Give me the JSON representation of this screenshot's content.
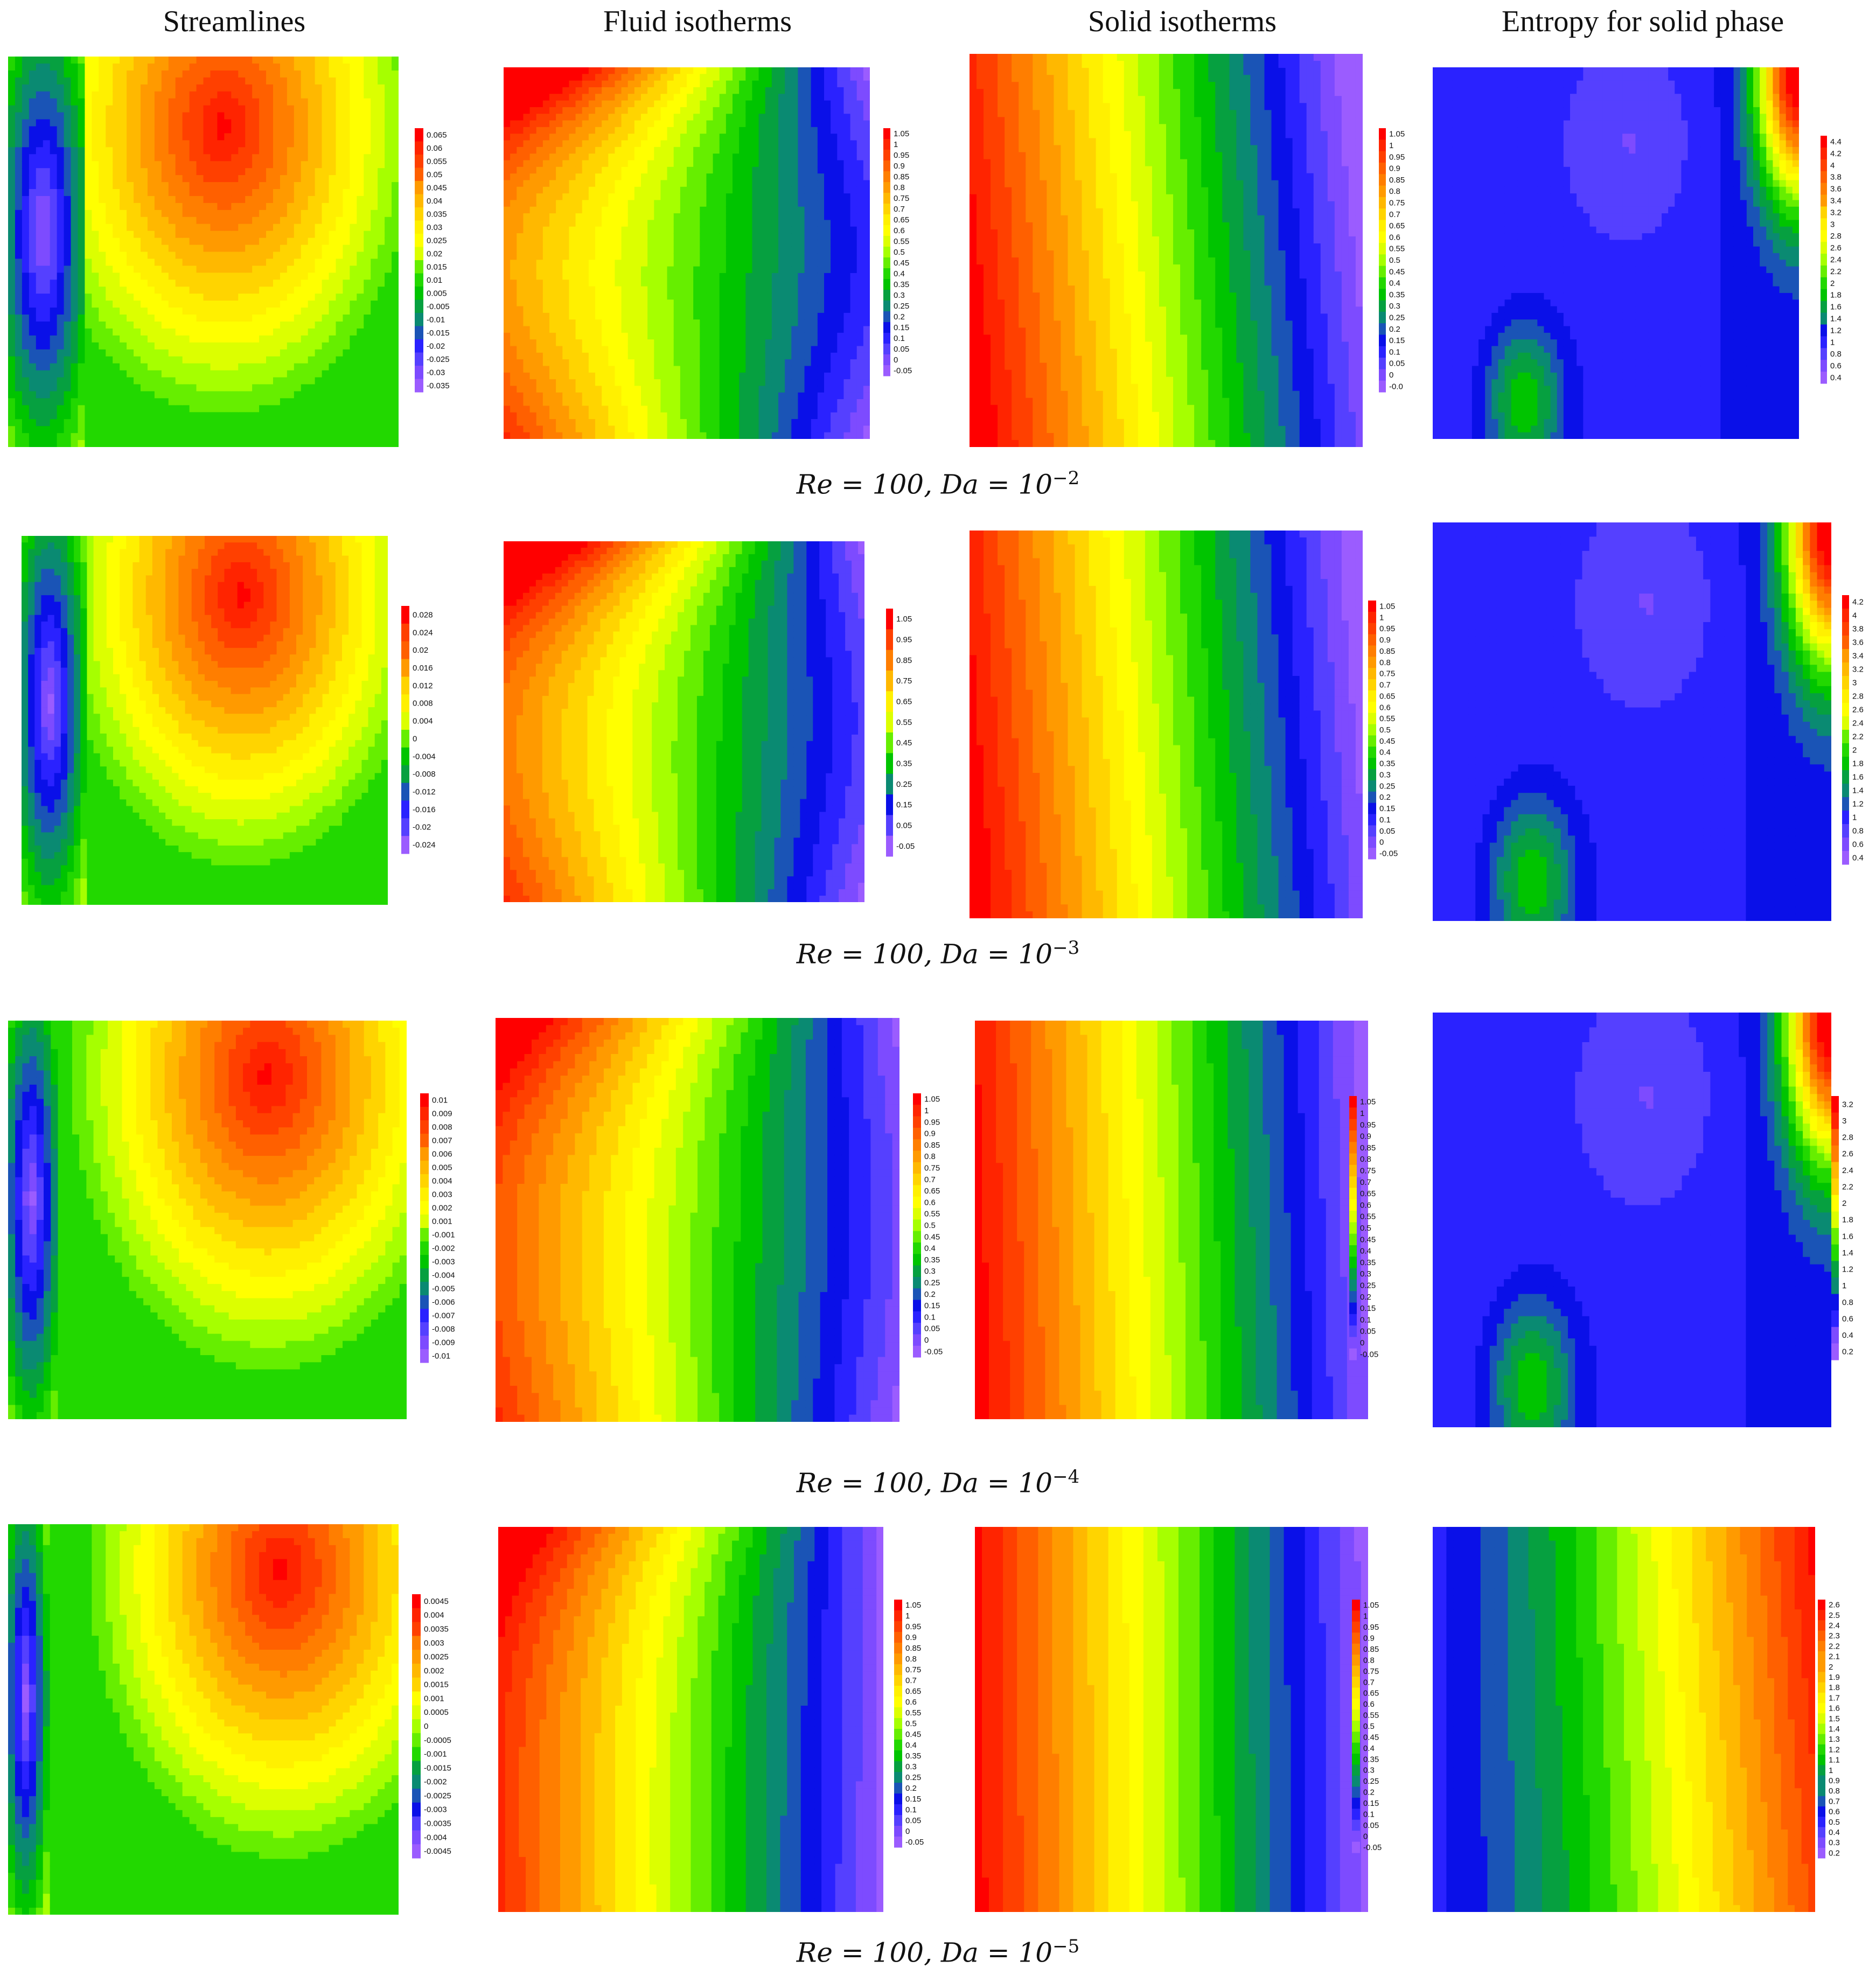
{
  "headers": [
    "Streamlines",
    "Fluid isotherms",
    "Solid isotherms",
    "Entropy for solid phase"
  ],
  "rows": [
    {
      "caption": {
        "re": "100",
        "da_exp": "−2"
      },
      "legends": [
        {
          "ticks": [
            "0.065",
            "0.06",
            "0.055",
            "0.05",
            "0.045",
            "0.04",
            "0.035",
            "0.03",
            "0.025",
            "0.02",
            "0.015",
            "0.01",
            "0.005",
            "-0.005",
            "-0.01",
            "-0.015",
            "-0.02",
            "-0.025",
            "-0.03",
            "-0.035"
          ]
        },
        {
          "ticks": [
            "1.05",
            "1",
            "0.95",
            "0.9",
            "0.85",
            "0.8",
            "0.75",
            "0.7",
            "0.65",
            "0.6",
            "0.55",
            "0.5",
            "0.45",
            "0.4",
            "0.35",
            "0.3",
            "0.25",
            "0.2",
            "0.15",
            "0.1",
            "0.05",
            "0",
            "-0.05"
          ]
        },
        {
          "ticks": [
            "1.05",
            "1",
            "0.95",
            "0.9",
            "0.85",
            "0.8",
            "0.75",
            "0.7",
            "0.65",
            "0.6",
            "0.55",
            "0.5",
            "0.45",
            "0.4",
            "0.35",
            "0.3",
            "0.25",
            "0.2",
            "0.15",
            "0.1",
            "0.05",
            "0",
            "-0.0"
          ]
        },
        {
          "ticks": [
            "4.4",
            "4.2",
            "4",
            "3.8",
            "3.6",
            "3.4",
            "3.2",
            "3",
            "2.8",
            "2.6",
            "2.4",
            "2.2",
            "2",
            "1.8",
            "1.6",
            "1.4",
            "1.2",
            "1",
            "0.8",
            "0.6",
            "0.4"
          ]
        }
      ]
    },
    {
      "caption": {
        "re": "100",
        "da_exp": "−3"
      },
      "legends": [
        {
          "ticks": [
            "0.028",
            "0.024",
            "0.02",
            "0.016",
            "0.012",
            "0.008",
            "0.004",
            "0",
            "-0.004",
            "-0.008",
            "-0.012",
            "-0.016",
            "-0.02",
            "-0.024"
          ]
        },
        {
          "ticks": [
            "1.05",
            "0.95",
            "0.85",
            "0.75",
            "0.65",
            "0.55",
            "0.45",
            "0.35",
            "0.25",
            "0.15",
            "0.05",
            "-0.05"
          ]
        },
        {
          "ticks": [
            "1.05",
            "1",
            "0.95",
            "0.9",
            "0.85",
            "0.8",
            "0.75",
            "0.7",
            "0.65",
            "0.6",
            "0.55",
            "0.5",
            "0.45",
            "0.4",
            "0.35",
            "0.3",
            "0.25",
            "0.2",
            "0.15",
            "0.1",
            "0.05",
            "0",
            "-0.05"
          ]
        },
        {
          "ticks": [
            "4.2",
            "4",
            "3.8",
            "3.6",
            "3.4",
            "3.2",
            "3",
            "2.8",
            "2.6",
            "2.4",
            "2.2",
            "2",
            "1.8",
            "1.6",
            "1.4",
            "1.2",
            "1",
            "0.8",
            "0.6",
            "0.4"
          ]
        }
      ]
    },
    {
      "caption": {
        "re": "100",
        "da_exp": "−4"
      },
      "legends": [
        {
          "ticks": [
            "0.01",
            "0.009",
            "0.008",
            "0.007",
            "0.006",
            "0.005",
            "0.004",
            "0.003",
            "0.002",
            "0.001",
            "-0.001",
            "-0.002",
            "-0.003",
            "-0.004",
            "-0.005",
            "-0.006",
            "-0.007",
            "-0.008",
            "-0.009",
            "-0.01"
          ]
        },
        {
          "ticks": [
            "1.05",
            "1",
            "0.95",
            "0.9",
            "0.85",
            "0.8",
            "0.75",
            "0.7",
            "0.65",
            "0.6",
            "0.55",
            "0.5",
            "0.45",
            "0.4",
            "0.35",
            "0.3",
            "0.25",
            "0.2",
            "0.15",
            "0.1",
            "0.05",
            "0",
            "-0.05"
          ]
        },
        {
          "ticks": [
            "1.05",
            "1",
            "0.95",
            "0.9",
            "0.85",
            "0.8",
            "0.75",
            "0.7",
            "0.65",
            "0.6",
            "0.55",
            "0.5",
            "0.45",
            "0.4",
            "0.35",
            "0.3",
            "0.25",
            "0.2",
            "0.15",
            "0.1",
            "0.05",
            "0",
            "-0.05"
          ]
        },
        {
          "ticks": [
            "3.2",
            "3",
            "2.8",
            "2.6",
            "2.4",
            "2.2",
            "2",
            "1.8",
            "1.6",
            "1.4",
            "1.2",
            "1",
            "0.8",
            "0.6",
            "0.4",
            "0.2"
          ]
        }
      ]
    },
    {
      "caption": {
        "re": "100",
        "da_exp": "−5"
      },
      "legends": [
        {
          "ticks": [
            "0.0045",
            "0.004",
            "0.0035",
            "0.003",
            "0.0025",
            "0.002",
            "0.0015",
            "0.001",
            "0.0005",
            "0",
            "-0.0005",
            "-0.001",
            "-0.0015",
            "-0.002",
            "-0.0025",
            "-0.003",
            "-0.0035",
            "-0.004",
            "-0.0045"
          ]
        },
        {
          "ticks": [
            "1.05",
            "1",
            "0.95",
            "0.9",
            "0.85",
            "0.8",
            "0.75",
            "0.7",
            "0.65",
            "0.6",
            "0.55",
            "0.5",
            "0.45",
            "0.4",
            "0.35",
            "0.3",
            "0.25",
            "0.2",
            "0.15",
            "0.1",
            "0.05",
            "0",
            "-0.05"
          ]
        },
        {
          "ticks": [
            "1.05",
            "1",
            "0.95",
            "0.9",
            "0.85",
            "0.8",
            "0.75",
            "0.7",
            "0.65",
            "0.6",
            "0.55",
            "0.5",
            "0.45",
            "0.4",
            "0.35",
            "0.3",
            "0.25",
            "0.2",
            "0.15",
            "0.1",
            "0.05",
            "0",
            "-0.05"
          ]
        },
        {
          "ticks": [
            "2.6",
            "2.5",
            "2.4",
            "2.3",
            "2.2",
            "2.1",
            "2",
            "1.9",
            "1.8",
            "1.7",
            "1.6",
            "1.5",
            "1.4",
            "1.3",
            "1.2",
            "1.1",
            "1",
            "0.9",
            "0.8",
            "0.7",
            "0.6",
            "0.5",
            "0.4",
            "0.3",
            "0.2"
          ]
        }
      ]
    }
  ]
}
